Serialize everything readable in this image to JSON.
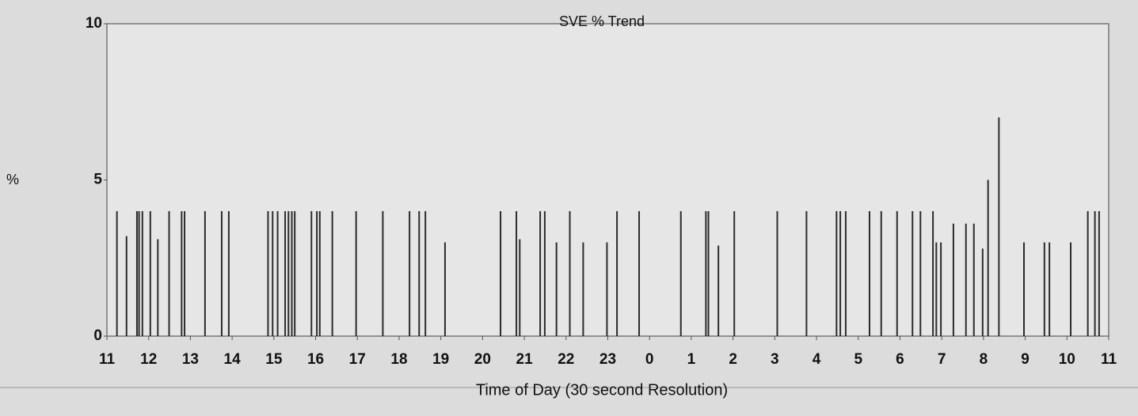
{
  "chart_data": {
    "type": "bar",
    "title": "SVE % Trend",
    "x_label": "Time of Day (30 second Resolution)",
    "y_label": "%",
    "color": "#2b2b2b",
    "grid": false,
    "xlim": [
      11,
      35
    ],
    "ylim": [
      0,
      10
    ],
    "yticks": [
      0,
      5,
      10
    ],
    "xticks": [
      11,
      12,
      13,
      14,
      15,
      16,
      17,
      18,
      19,
      20,
      21,
      22,
      23,
      {
        "value": 24,
        "label": "0"
      },
      {
        "value": 25,
        "label": "1"
      },
      {
        "value": 26,
        "label": "2"
      },
      {
        "value": 27,
        "label": "3"
      },
      {
        "value": 28,
        "label": "4"
      },
      {
        "value": 29,
        "label": "5"
      },
      {
        "value": 30,
        "label": "6"
      },
      {
        "value": 31,
        "label": "7"
      },
      {
        "value": 32,
        "label": "8"
      },
      {
        "value": 33,
        "label": "9"
      },
      {
        "value": 34,
        "label": "10"
      },
      {
        "value": 35,
        "label": "11"
      }
    ],
    "x": [
      11.24,
      11.47,
      11.72,
      11.77,
      11.85,
      12.04,
      12.22,
      12.49,
      12.79,
      12.86,
      13.35,
      13.75,
      13.92,
      14.86,
      14.97,
      15.09,
      15.27,
      15.35,
      15.43,
      15.5,
      15.9,
      16.03,
      16.1,
      16.4,
      16.97,
      17.61,
      18.25,
      18.48,
      18.63,
      19.1,
      20.43,
      20.81,
      20.89,
      21.38,
      21.49,
      21.77,
      22.09,
      22.41,
      22.98,
      23.22,
      23.75,
      24.75,
      25.35,
      25.41,
      25.65,
      26.03,
      27.06,
      27.76,
      28.48,
      28.57,
      28.7,
      29.27,
      29.55,
      29.93,
      30.3,
      30.49,
      30.79,
      30.87,
      30.98,
      31.28,
      31.58,
      31.77,
      31.98,
      32.11,
      32.37,
      32.97,
      33.46,
      33.58,
      34.09,
      34.5,
      34.67,
      34.77
    ],
    "values": [
      4,
      3.2,
      4,
      4,
      4,
      4,
      3.1,
      4,
      4,
      4,
      4,
      4,
      4,
      4,
      4,
      4,
      4,
      4,
      4,
      4,
      4,
      4,
      4,
      4,
      4,
      4,
      4,
      4,
      4,
      3,
      4,
      4,
      3.1,
      4,
      4,
      3,
      4,
      3,
      3,
      4,
      4,
      4,
      4,
      4,
      2.9,
      4,
      4,
      4,
      4,
      4,
      4,
      4,
      4,
      4,
      4,
      4,
      4,
      3,
      3,
      3.6,
      3.6,
      3.6,
      2.8,
      5,
      7,
      3,
      3,
      3,
      3,
      4,
      4,
      4
    ]
  }
}
